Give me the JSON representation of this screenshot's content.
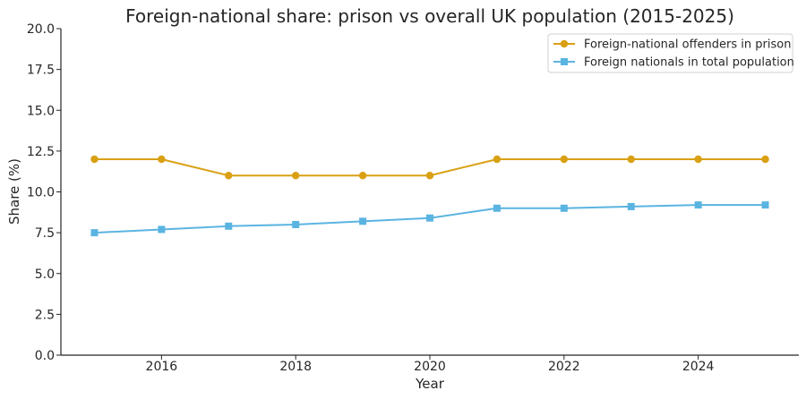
{
  "chart_data": {
    "type": "line",
    "title": "Foreign-national share: prison vs overall UK population (2015-2025)",
    "xlabel": "Year",
    "ylabel": "Share (%)",
    "x": [
      2015,
      2016,
      2017,
      2018,
      2019,
      2020,
      2021,
      2022,
      2023,
      2024,
      2025
    ],
    "xlim": [
      2014.5,
      2025.5
    ],
    "ylim": [
      0,
      20
    ],
    "x_ticks": [
      2016,
      2018,
      2020,
      2022,
      2024
    ],
    "y_ticks": [
      0,
      2.5,
      5,
      7.5,
      10,
      12.5,
      15,
      17.5,
      20
    ],
    "x_tick_labels": [
      "2016",
      "2018",
      "2020",
      "2022",
      "2024"
    ],
    "y_tick_labels": [
      "0.0",
      "2.5",
      "5.0",
      "7.5",
      "10.0",
      "12.5",
      "15.0",
      "17.5",
      "20.0"
    ],
    "grid": false,
    "legend_position": "top-right",
    "series": [
      {
        "name": "Foreign-national offenders in prison",
        "color": "#DAA014",
        "marker": "circle",
        "values": [
          12,
          12,
          11,
          11,
          11,
          11,
          12,
          12,
          12,
          12,
          12
        ]
      },
      {
        "name": "Foreign nationals in total population",
        "color": "#5AB4E1",
        "marker": "square",
        "values": [
          7.5,
          7.7,
          7.9,
          8.0,
          8.2,
          8.4,
          9.0,
          9.0,
          9.1,
          9.2,
          9.2
        ]
      }
    ]
  }
}
